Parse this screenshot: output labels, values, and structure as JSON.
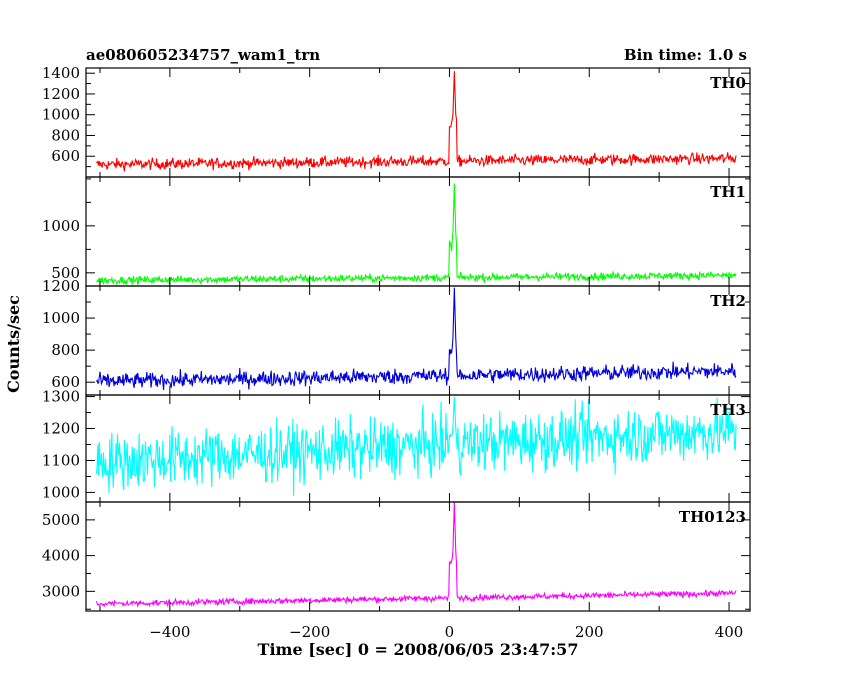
{
  "chart_data": {
    "type": "line",
    "title_left": "ae080605234757_wam1_trn",
    "title_right": "Bin time: 1.0 s",
    "xlabel": "Time [sec] 0 = 2008/06/05 23:47:57",
    "ylabel": "Counts/sec",
    "xlim": [
      -520,
      430
    ],
    "x_ticks": [
      -400,
      -200,
      0,
      200,
      400
    ],
    "x_ticklabels": [
      "−400",
      "−200",
      "0",
      "200",
      "400"
    ],
    "x_range": [
      -505,
      410
    ],
    "bin_seconds": 1.0,
    "panels": [
      {
        "name": "TH0",
        "color": "#ff0000",
        "ylim": [
          400,
          1450
        ],
        "y_ticks": [
          600,
          800,
          1000,
          1200,
          1400
        ],
        "baseline_start": 520,
        "baseline_end": 580,
        "noise": 38,
        "peak": 1420,
        "pre_peak": 900
      },
      {
        "name": "TH1",
        "color": "#00ff00",
        "ylim": [
          360,
          1520
        ],
        "y_ticks": [
          500,
          1000
        ],
        "baseline_start": 420,
        "baseline_end": 475,
        "noise": 28,
        "peak": 1450,
        "pre_peak": 800
      },
      {
        "name": "TH2",
        "color": "#0000dd",
        "ylim": [
          520,
          1200
        ],
        "y_ticks": [
          600,
          800,
          1000,
          1200
        ],
        "baseline_start": 605,
        "baseline_end": 670,
        "noise": 35,
        "peak": 1190,
        "pre_peak": 800
      },
      {
        "name": "TH3",
        "color": "#00ffff",
        "ylim": [
          970,
          1305
        ],
        "y_ticks": [
          1000,
          1100,
          1200,
          1300
        ],
        "baseline_start": 1095,
        "baseline_end": 1195,
        "noise": 65,
        "peak": 1300,
        "pre_peak": 1180
      },
      {
        "name": "TH0123",
        "color": "#ff00ff",
        "ylim": [
          2450,
          5500
        ],
        "y_ticks": [
          3000,
          4000,
          5000
        ],
        "baseline_start": 2650,
        "baseline_end": 2950,
        "noise": 60,
        "peak": 5500,
        "pre_peak": 3800
      }
    ]
  }
}
